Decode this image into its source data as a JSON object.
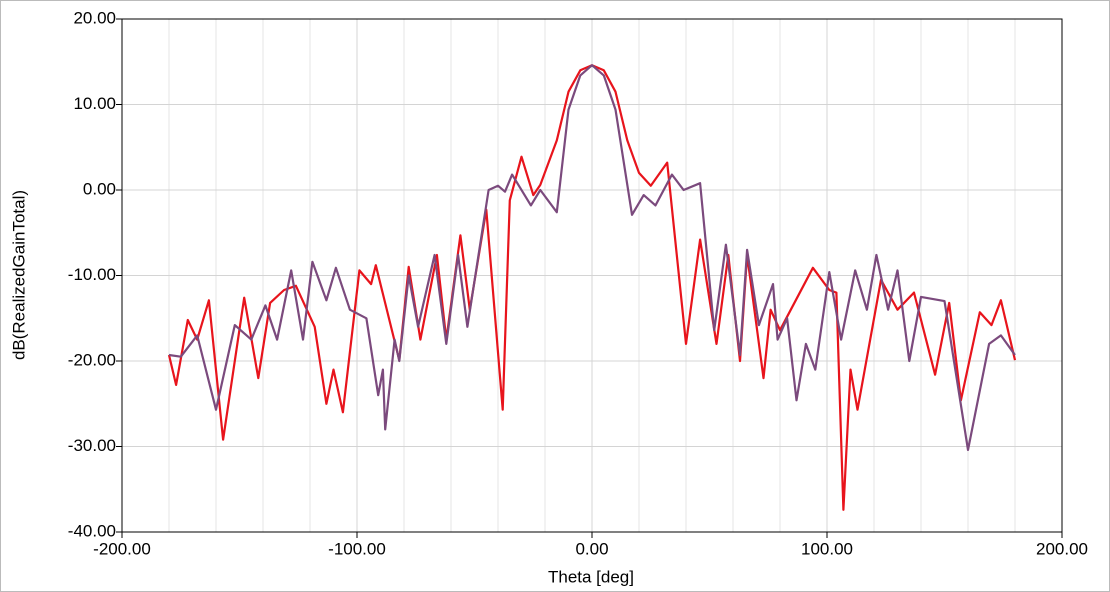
{
  "chart_data": {
    "type": "line",
    "x_label": "Theta [deg]",
    "y_label": "dB(RealizedGainTotal)",
    "xlim": [
      -200,
      200
    ],
    "ylim": [
      -40,
      20
    ],
    "xticks": [
      {
        "value": -200,
        "label": "-200.00"
      },
      {
        "value": -100,
        "label": "-100.00"
      },
      {
        "value": 0,
        "label": "0.00"
      },
      {
        "value": 100,
        "label": "100.00"
      },
      {
        "value": 200,
        "label": "200.00"
      }
    ],
    "yticks": [
      {
        "value": -40,
        "label": "-40.00"
      },
      {
        "value": -30,
        "label": "-30.00"
      },
      {
        "value": -20,
        "label": "-20.00"
      },
      {
        "value": -10,
        "label": "-10.00"
      },
      {
        "value": 0,
        "label": "0.00"
      },
      {
        "value": 10,
        "label": "10.00"
      },
      {
        "value": 20,
        "label": "20.00"
      }
    ],
    "x_minor_grid": [
      -180,
      -160,
      -140,
      -120,
      -80,
      -60,
      -40,
      -20,
      20,
      40,
      60,
      80,
      120,
      140,
      160,
      180
    ],
    "grid": true,
    "series": [
      {
        "color": "#e8141c",
        "x": [
          -180,
          -177,
          -172,
          -168,
          -163,
          -157,
          -148,
          -142,
          -137,
          -131,
          -126,
          -118,
          -113,
          -110,
          -106,
          -99,
          -94,
          -92,
          -82,
          -78,
          -73,
          -66,
          -62,
          -56,
          -52,
          -45,
          -38,
          -35,
          -30,
          -25,
          -22,
          -15,
          -10,
          -5,
          0,
          5,
          10,
          15,
          20,
          25,
          32,
          40,
          46,
          53,
          58,
          63,
          66,
          73,
          76,
          80,
          94,
          101,
          104,
          107,
          110,
          113,
          123,
          130,
          137,
          146,
          152,
          157,
          165,
          170,
          174,
          180
        ],
        "values": [
          -19.3,
          -22.8,
          -15.2,
          -17.5,
          -12.9,
          -29.2,
          -12.6,
          -22,
          -13.2,
          -11.7,
          -11.2,
          -16,
          -25,
          -21,
          -26,
          -9.4,
          -11,
          -8.8,
          -19.9,
          -9,
          -17.5,
          -7.6,
          -17.5,
          -5.3,
          -14,
          -2.3,
          -25.7,
          -1.2,
          3.9,
          -0.6,
          0.6,
          5.8,
          11.5,
          14,
          14.6,
          14,
          11.5,
          5.8,
          2,
          0.5,
          3.2,
          -18,
          -5.8,
          -18,
          -7.6,
          -20,
          -7.6,
          -22,
          -14,
          -16.4,
          -9.1,
          -11.7,
          -12,
          -37.4,
          -21,
          -25.7,
          -10.5,
          -14,
          -12,
          -21.6,
          -13.2,
          -24.6,
          -14.3,
          -15.8,
          -12.9,
          -19.9
        ]
      },
      {
        "color": "#7b4a7d",
        "x": [
          -180,
          -175,
          -168,
          -160,
          -152,
          -145,
          -139,
          -134,
          -128,
          -123,
          -119,
          -113,
          -109,
          -103,
          -96,
          -91,
          -89,
          -88,
          -84,
          -82,
          -78,
          -74,
          -67,
          -62,
          -57,
          -53,
          -44,
          -40,
          -37,
          -34,
          -26,
          -22,
          -15,
          -10,
          -5,
          0,
          5,
          10,
          17,
          22,
          27,
          34,
          39,
          46,
          52,
          57,
          63,
          66,
          71,
          77,
          79,
          83,
          87,
          91,
          95,
          101,
          106,
          112,
          117,
          121,
          126,
          130,
          135,
          140,
          150,
          160,
          169,
          174,
          180
        ],
        "values": [
          -19.3,
          -19.5,
          -17,
          -25.7,
          -15.8,
          -17.5,
          -13.5,
          -17.5,
          -9.4,
          -17.5,
          -8.4,
          -12.9,
          -9.1,
          -14,
          -15,
          -24,
          -21,
          -28,
          -17.5,
          -20,
          -10,
          -16,
          -7.6,
          -18,
          -7.6,
          -16,
          0,
          0.5,
          -0.2,
          1.8,
          -1.8,
          0,
          -2.6,
          9.4,
          13.4,
          14.6,
          13.4,
          9.4,
          -2.9,
          -0.6,
          -1.8,
          1.8,
          0,
          0.8,
          -16.4,
          -6.4,
          -19.3,
          -7,
          -15.8,
          -11,
          -17.5,
          -15,
          -24.6,
          -18,
          -21,
          -9.6,
          -17.5,
          -9.4,
          -14,
          -7.6,
          -14,
          -9.4,
          -20,
          -12.5,
          -13,
          -30.4,
          -18,
          -17,
          -19.3
        ]
      }
    ]
  }
}
